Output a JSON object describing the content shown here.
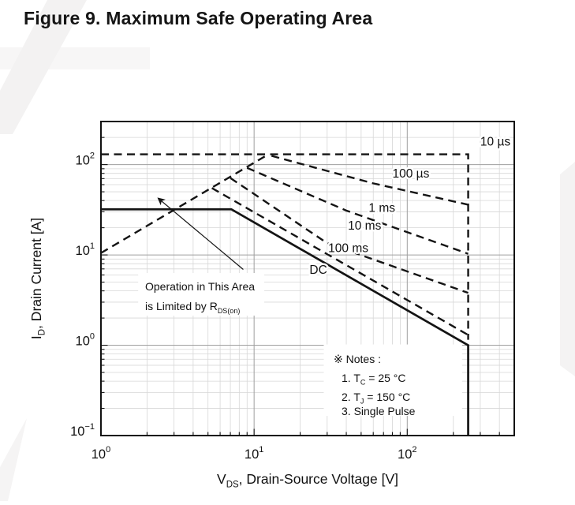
{
  "page": {
    "title": "Figure 9. Maximum Safe Operating Area"
  },
  "chart_data": {
    "type": "line",
    "title": "Figure 9. Maximum Safe Operating Area",
    "xlabel": {
      "pre": "V",
      "sub": "DS",
      "post": ", Drain-Source Voltage [V]"
    },
    "ylabel": {
      "pre": "I",
      "sub": "D",
      "post": ", Drain Current [A]"
    },
    "x_scale": "log",
    "y_scale": "log",
    "xlim": [
      1,
      500
    ],
    "ylim": [
      0.1,
      300
    ],
    "x_tick_exponents": [
      0,
      1,
      2
    ],
    "y_tick_exponents": [
      2,
      1,
      0,
      -1
    ],
    "grid": true,
    "line_color": "#141414",
    "grid_minor_color": "#d7d7d7",
    "grid_major_color": "#9f9f9f",
    "series": [
      {
        "name": "rdson-limit-line",
        "label": "",
        "style": "dashed",
        "points": [
          [
            1,
            10.5
          ],
          [
            12.4,
            130
          ]
        ]
      },
      {
        "name": "pulse-10us",
        "label": "10 µs",
        "style": "dashed",
        "points": [
          [
            1,
            130
          ],
          [
            250,
            130
          ],
          [
            250,
            1.15
          ]
        ]
      },
      {
        "name": "pulse-100us",
        "label": "100 µs",
        "style": "dashed",
        "points": [
          [
            13,
            125
          ],
          [
            60,
            62
          ],
          [
            250,
            36
          ]
        ]
      },
      {
        "name": "pulse-1ms",
        "label": "1 ms",
        "style": "dashed",
        "points": [
          [
            9,
            92
          ],
          [
            40,
            31
          ],
          [
            250,
            10.3
          ]
        ]
      },
      {
        "name": "pulse-10ms",
        "label": "10 ms",
        "style": "dashed",
        "points": [
          [
            7,
            71
          ],
          [
            30,
            13.5
          ],
          [
            250,
            3.8
          ]
        ]
      },
      {
        "name": "pulse-100ms",
        "label": "100 ms",
        "style": "dashed",
        "points": [
          [
            5.3,
            55
          ],
          [
            250,
            1.3
          ]
        ]
      },
      {
        "name": "dc",
        "label": "DC",
        "style": "solid",
        "points": [
          [
            1,
            32
          ],
          [
            7.1,
            32
          ],
          [
            250,
            1.0
          ],
          [
            250,
            0.1
          ]
        ]
      }
    ],
    "curve_labels": [
      {
        "text": "10 µs",
        "x": 300,
        "y": 163,
        "anchor": "start"
      },
      {
        "text": "100 µs",
        "x": 80,
        "y": 72,
        "anchor": "start"
      },
      {
        "text": "1 ms",
        "x": 56,
        "y": 30,
        "anchor": "start"
      },
      {
        "text": "10 ms",
        "x": 41,
        "y": 19,
        "anchor": "start"
      },
      {
        "text": "100 ms",
        "x": 30.5,
        "y": 10.8,
        "anchor": "start"
      },
      {
        "text": "DC",
        "x": 23,
        "y": 6.2,
        "anchor": "start"
      }
    ],
    "annotation": {
      "line1": "Operation in This Area",
      "line2_pre": "is Limited by R",
      "line2_sub": "DS(on)",
      "box": {
        "x1": 1.75,
        "x2": 11.65,
        "y1": 2.13,
        "y2": 6.3
      },
      "arrow": {
        "tail": [
          8.5,
          6.9
        ],
        "head": [
          2.36,
          42.5
        ]
      }
    },
    "notes": {
      "heading": "※ Notes :",
      "items": [
        {
          "pre": "1. T",
          "sub": "C",
          "post": " = 25 °C"
        },
        {
          "pre": "2. T",
          "sub": "J",
          "post": " = 150 °C"
        },
        {
          "pre": "3. Single Pulse",
          "sub": "",
          "post": ""
        }
      ],
      "box": {
        "x1": 28.5,
        "x2": 228,
        "y1": 0.165,
        "y2": 1.02
      }
    }
  }
}
